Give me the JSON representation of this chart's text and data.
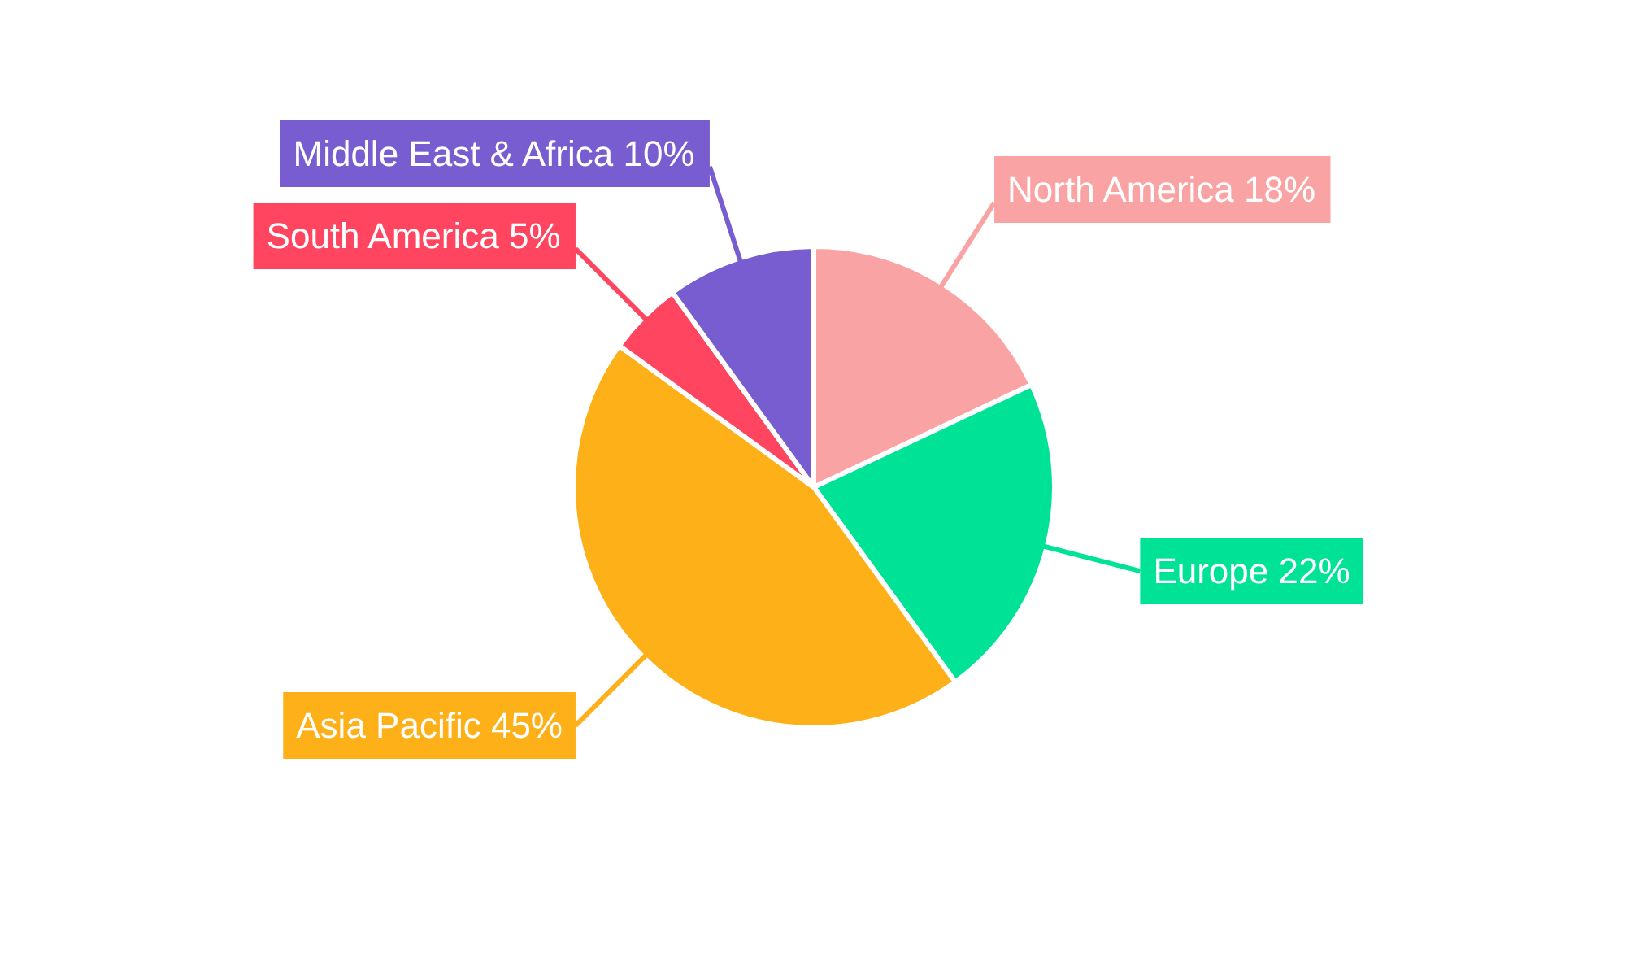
{
  "chart_data": {
    "type": "pie",
    "categories": [
      "North America",
      "Europe",
      "Asia Pacific",
      "South America",
      "Middle East & Africa"
    ],
    "values": [
      18,
      22,
      45,
      5,
      10
    ],
    "colors": [
      "#f9a3a4",
      "#00e396",
      "#feb019",
      "#ff4560",
      "#775dd0"
    ],
    "value_labels": [
      "18%",
      "22%",
      "45%",
      "5%",
      "10%"
    ]
  }
}
